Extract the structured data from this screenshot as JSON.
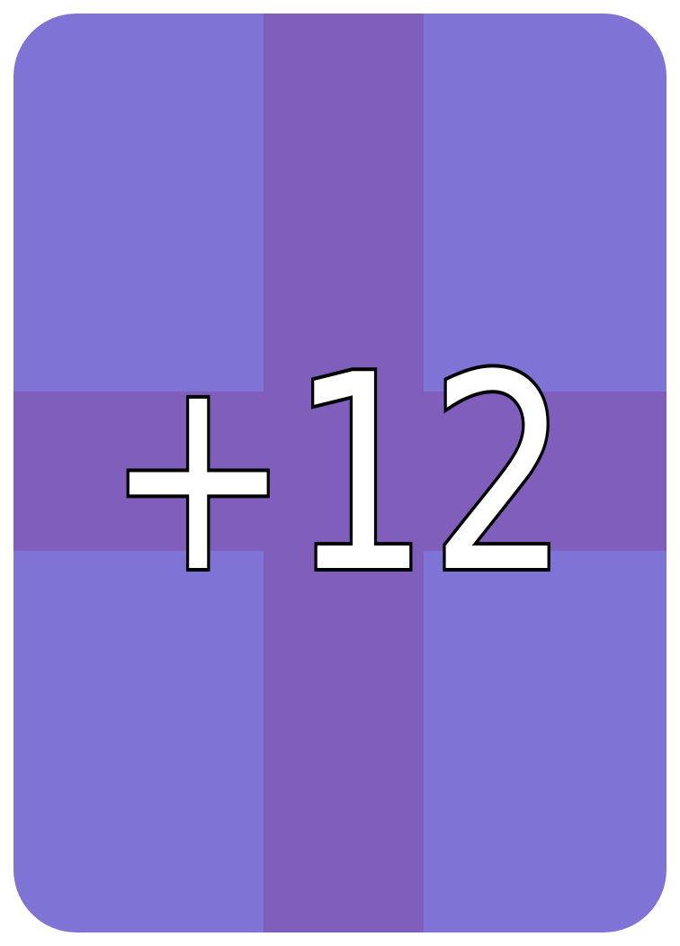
{
  "card": {
    "value": "+12",
    "colors": {
      "background": "#7f74d5",
      "band": "#7f5fbb",
      "text_fill": "#ffffff",
      "text_outline": "#000000"
    }
  }
}
